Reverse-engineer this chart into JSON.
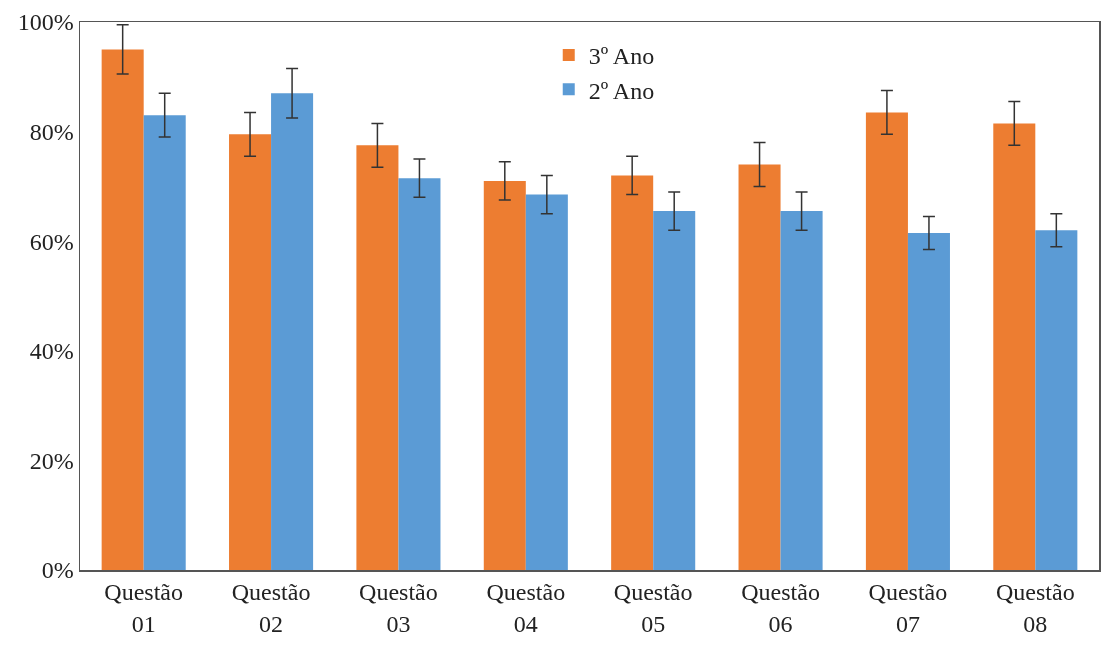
{
  "chart_data": {
    "type": "bar",
    "categories": [
      "Questão\n01",
      "Questão\n02",
      "Questão\n03",
      "Questão\n04",
      "Questão\n05",
      "Questão\n06",
      "Questão\n07",
      "Questão\n08"
    ],
    "series": [
      {
        "name": "3º Ano",
        "color": "#ed7d31",
        "values": [
          95,
          79.5,
          77.5,
          71,
          72,
          74,
          83.5,
          81.5
        ],
        "errors": [
          4.5,
          4,
          4,
          3.5,
          3.5,
          4,
          4,
          4
        ]
      },
      {
        "name": "2º Ano",
        "color": "#5b9bd5",
        "values": [
          83,
          87,
          71.5,
          68.5,
          65.5,
          65.5,
          61.5,
          62
        ],
        "errors": [
          4,
          4.5,
          3.5,
          3.5,
          3.5,
          3.5,
          3,
          3
        ]
      }
    ],
    "ylim": [
      0,
      100
    ],
    "yticks": [
      {
        "value": 0,
        "label": "0%"
      },
      {
        "value": 20,
        "label": "20%"
      },
      {
        "value": 40,
        "label": "40%"
      },
      {
        "value": 60,
        "label": "60%"
      },
      {
        "value": 80,
        "label": "80%"
      },
      {
        "value": 100,
        "label": "100%"
      }
    ],
    "grid": false,
    "legend": "top"
  }
}
